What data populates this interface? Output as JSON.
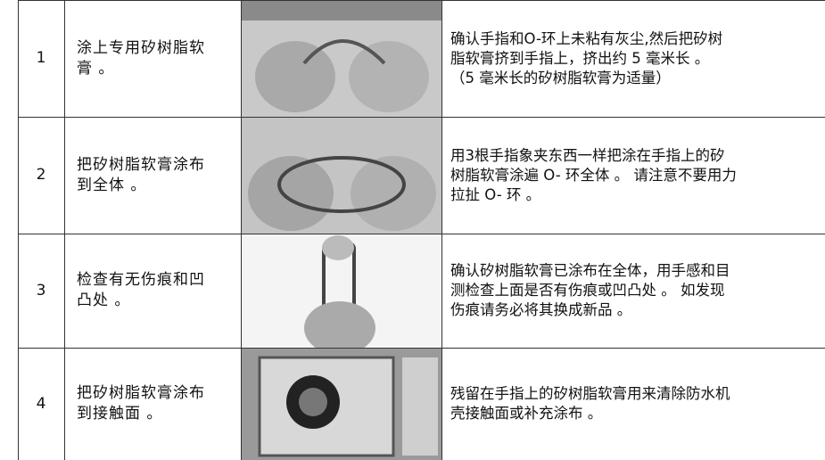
{
  "table": {
    "rows": [
      {
        "number": "1",
        "step": [
          "涂上专用矽树脂软",
          "膏 。"
        ],
        "description": [
          "确认手指和O-环上未粘有灰尘,然后把矽树",
          "脂软膏挤到手指上，挤出约 5 毫米长 。",
          "（5 毫米长的矽树脂软膏为适量）"
        ]
      },
      {
        "number": "2",
        "step": [
          "把矽树脂软膏涂布",
          "到全体 。"
        ],
        "description": [
          "用3根手指象夹东西一样把涂在手指上的矽",
          "树脂软膏涂遍 O- 环全体 。 请注意不要用力",
          "拉扯 O- 环 。"
        ]
      },
      {
        "number": "3",
        "step": [
          "检查有无伤痕和凹",
          "凸处 。"
        ],
        "description": [
          "确认矽树脂软膏已涂布在全体，用手感和目",
          "测检查上面是否有伤痕或凹凸处 。 如发现",
          "伤痕请务必将其换成新品 。"
        ]
      },
      {
        "number": "4",
        "step": [
          "把矽树脂软膏涂布",
          "到接触面 。"
        ],
        "description": [
          "残留在手指上的矽树脂软膏用来清除防水机",
          "壳接触面或补充涂布 。"
        ]
      }
    ]
  }
}
